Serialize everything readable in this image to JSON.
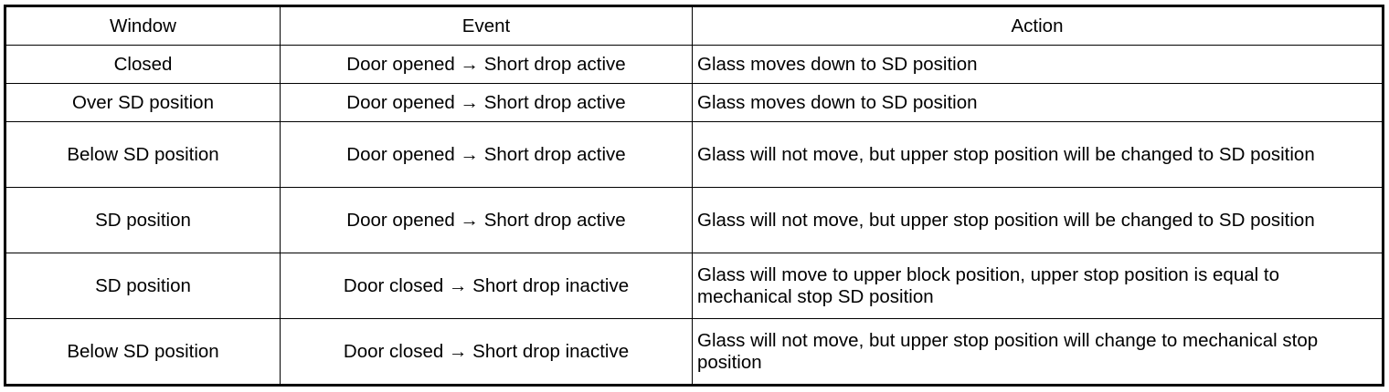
{
  "table": {
    "headers": [
      "Window",
      "Event",
      "Action"
    ],
    "rows": [
      {
        "window": "Closed",
        "event": "Door opened → Short drop active",
        "action": "Glass moves down to SD position"
      },
      {
        "window": "Over SD position",
        "event": "Door opened → Short drop active",
        "action": "Glass moves down to SD position"
      },
      {
        "window": "Below SD position",
        "event": "Door opened → Short drop active",
        "action": "Glass will not move, but upper stop position will be changed to SD position"
      },
      {
        "window": "SD position",
        "event": "Door opened → Short drop active",
        "action": "Glass will not move, but upper stop position will be changed to SD position"
      },
      {
        "window": "SD position",
        "event": "Door closed → Short drop inactive",
        "action": "Glass will move to upper block position, upper stop position is equal to mechanical stop SD position"
      },
      {
        "window": "Below SD position",
        "event": "Door closed → Short drop inactive",
        "action": "Glass will not move, but upper stop position will change to mechanical stop position"
      }
    ]
  }
}
